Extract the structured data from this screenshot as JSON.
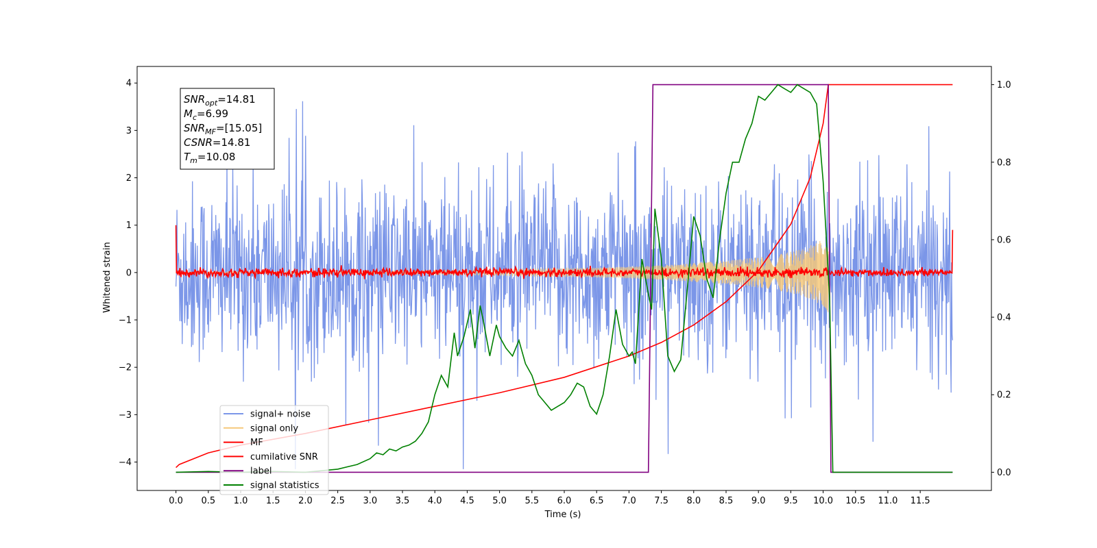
{
  "chart_data": {
    "type": "line",
    "xlabel": "Time (s)",
    "ylabel_left": "Whitened strain",
    "ylabel_right": "",
    "xlim": [
      -0.6,
      12.6
    ],
    "ylim_left": [
      -4.6,
      4.35
    ],
    "ylim_right": [
      -0.047,
      1.047
    ],
    "x_ticks": [
      0.0,
      0.5,
      1.0,
      1.5,
      2.0,
      2.5,
      3.0,
      3.5,
      4.0,
      4.5,
      5.0,
      5.5,
      6.0,
      6.5,
      7.0,
      7.5,
      8.0,
      8.5,
      9.0,
      9.5,
      10.0,
      10.5,
      11.0,
      11.5
    ],
    "x_tick_labels": [
      "0.0",
      "0.5",
      "1.0",
      "1.5",
      "2.0",
      "2.5",
      "3.0",
      "3.5",
      "4.0",
      "4.5",
      "5.0",
      "5.5",
      "6.0",
      "6.5",
      "7.0",
      "7.5",
      "8.0",
      "8.5",
      "9.0",
      "9.5",
      "10.0",
      "10.5",
      "11.0",
      "11.5"
    ],
    "y_left_ticks": [
      -4,
      -3,
      -2,
      -1,
      0,
      1,
      2,
      3,
      4
    ],
    "y_left_tick_labels": [
      "−4",
      "−3",
      "−2",
      "−1",
      "0",
      "1",
      "2",
      "3",
      "4"
    ],
    "y_right_ticks": [
      0.0,
      0.2,
      0.4,
      0.6,
      0.8,
      1.0
    ],
    "y_right_tick_labels": [
      "0.0",
      "0.2",
      "0.4",
      "0.6",
      "0.8",
      "1.0"
    ],
    "grid": false,
    "legend_placement": "lower-left",
    "stats_box": [
      {
        "sym": "SNR",
        "sub": "opt",
        "val": "=14.81"
      },
      {
        "sym": "M",
        "sub": "c",
        "val": "=6.99"
      },
      {
        "sym": "SNR",
        "sub": "MF",
        "val": "=[15.05]"
      },
      {
        "sym": "CSNR",
        "sub": "",
        "val": "=14.81"
      },
      {
        "sym": "T",
        "sub": "m",
        "val": "=10.08"
      }
    ],
    "series": [
      {
        "name": "signal+ noise",
        "axis": "left",
        "color": "#7b96e8",
        "noise_band": {
          "x_start": 0.0,
          "x_end": 12.0,
          "typical_range": [
            -2.0,
            2.0
          ],
          "peak_max": 3.95,
          "peak_min": -4.15
        }
      },
      {
        "name": "signal only",
        "axis": "left",
        "color": "#f5c87a",
        "envelope": {
          "x": [
            0.0,
            3.0,
            5.0,
            6.5,
            7.5,
            8.5,
            9.2,
            9.7,
            10.0,
            10.08
          ],
          "amplitude": [
            0.01,
            0.03,
            0.06,
            0.1,
            0.15,
            0.25,
            0.35,
            0.5,
            0.7,
            0.85
          ]
        }
      },
      {
        "name": "MF",
        "axis": "left",
        "color": "#ff0000",
        "noise_band": {
          "x_start": 0.0,
          "x_end": 12.0,
          "typical_range": [
            -0.1,
            0.1
          ]
        },
        "edge_spikes": {
          "start": 1.0,
          "end": 0.9
        }
      },
      {
        "name": "cumilative SNR",
        "axis": "right",
        "color": "#ff0000",
        "x": [
          0.0,
          0.05,
          0.5,
          1.0,
          2.0,
          3.0,
          4.0,
          5.0,
          6.0,
          7.0,
          7.5,
          8.0,
          8.5,
          9.0,
          9.5,
          9.8,
          10.0,
          10.08,
          10.1,
          11.0,
          12.0
        ],
        "y": [
          0.012,
          0.02,
          0.05,
          0.07,
          0.1,
          0.135,
          0.17,
          0.205,
          0.245,
          0.3,
          0.335,
          0.38,
          0.44,
          0.52,
          0.64,
          0.76,
          0.9,
          1.0,
          1.0,
          1.0,
          1.0
        ]
      },
      {
        "name": "label",
        "axis": "right",
        "color": "#800080",
        "x": [
          0.0,
          7.3,
          7.37,
          10.08,
          10.12,
          12.0
        ],
        "y": [
          0.0,
          0.0,
          1.0,
          1.0,
          0.0,
          0.0
        ]
      },
      {
        "name": "signal statistics",
        "axis": "right",
        "color": "#008000",
        "x": [
          0.0,
          0.5,
          1.0,
          1.5,
          2.0,
          2.5,
          2.8,
          3.0,
          3.1,
          3.2,
          3.3,
          3.4,
          3.5,
          3.6,
          3.7,
          3.8,
          3.9,
          4.0,
          4.1,
          4.2,
          4.3,
          4.35,
          4.45,
          4.55,
          4.62,
          4.7,
          4.75,
          4.85,
          4.95,
          5.0,
          5.1,
          5.2,
          5.3,
          5.4,
          5.5,
          5.6,
          5.7,
          5.8,
          5.9,
          6.0,
          6.1,
          6.2,
          6.3,
          6.4,
          6.5,
          6.6,
          6.7,
          6.8,
          6.9,
          7.0,
          7.05,
          7.1,
          7.2,
          7.3,
          7.35,
          7.4,
          7.5,
          7.6,
          7.7,
          7.8,
          7.9,
          8.0,
          8.1,
          8.2,
          8.3,
          8.4,
          8.5,
          8.6,
          8.7,
          8.8,
          8.9,
          9.0,
          9.1,
          9.2,
          9.3,
          9.4,
          9.5,
          9.6,
          9.7,
          9.8,
          9.9,
          10.0,
          10.1,
          10.15,
          10.3,
          11.0,
          12.0
        ],
        "y": [
          0.0,
          0.002,
          0.0,
          0.002,
          0.0,
          0.008,
          0.02,
          0.035,
          0.05,
          0.045,
          0.06,
          0.055,
          0.065,
          0.07,
          0.08,
          0.1,
          0.13,
          0.2,
          0.25,
          0.22,
          0.36,
          0.3,
          0.35,
          0.42,
          0.32,
          0.43,
          0.39,
          0.3,
          0.38,
          0.35,
          0.32,
          0.3,
          0.34,
          0.28,
          0.25,
          0.2,
          0.18,
          0.16,
          0.17,
          0.18,
          0.2,
          0.23,
          0.22,
          0.17,
          0.15,
          0.2,
          0.3,
          0.42,
          0.33,
          0.3,
          0.31,
          0.28,
          0.55,
          0.46,
          0.42,
          0.68,
          0.55,
          0.3,
          0.26,
          0.29,
          0.47,
          0.66,
          0.61,
          0.5,
          0.45,
          0.6,
          0.72,
          0.8,
          0.8,
          0.86,
          0.9,
          0.97,
          0.96,
          0.98,
          1.0,
          0.99,
          0.98,
          1.0,
          0.99,
          0.98,
          0.95,
          0.75,
          0.45,
          0.0,
          0.0,
          0.0,
          0.0
        ]
      }
    ]
  }
}
